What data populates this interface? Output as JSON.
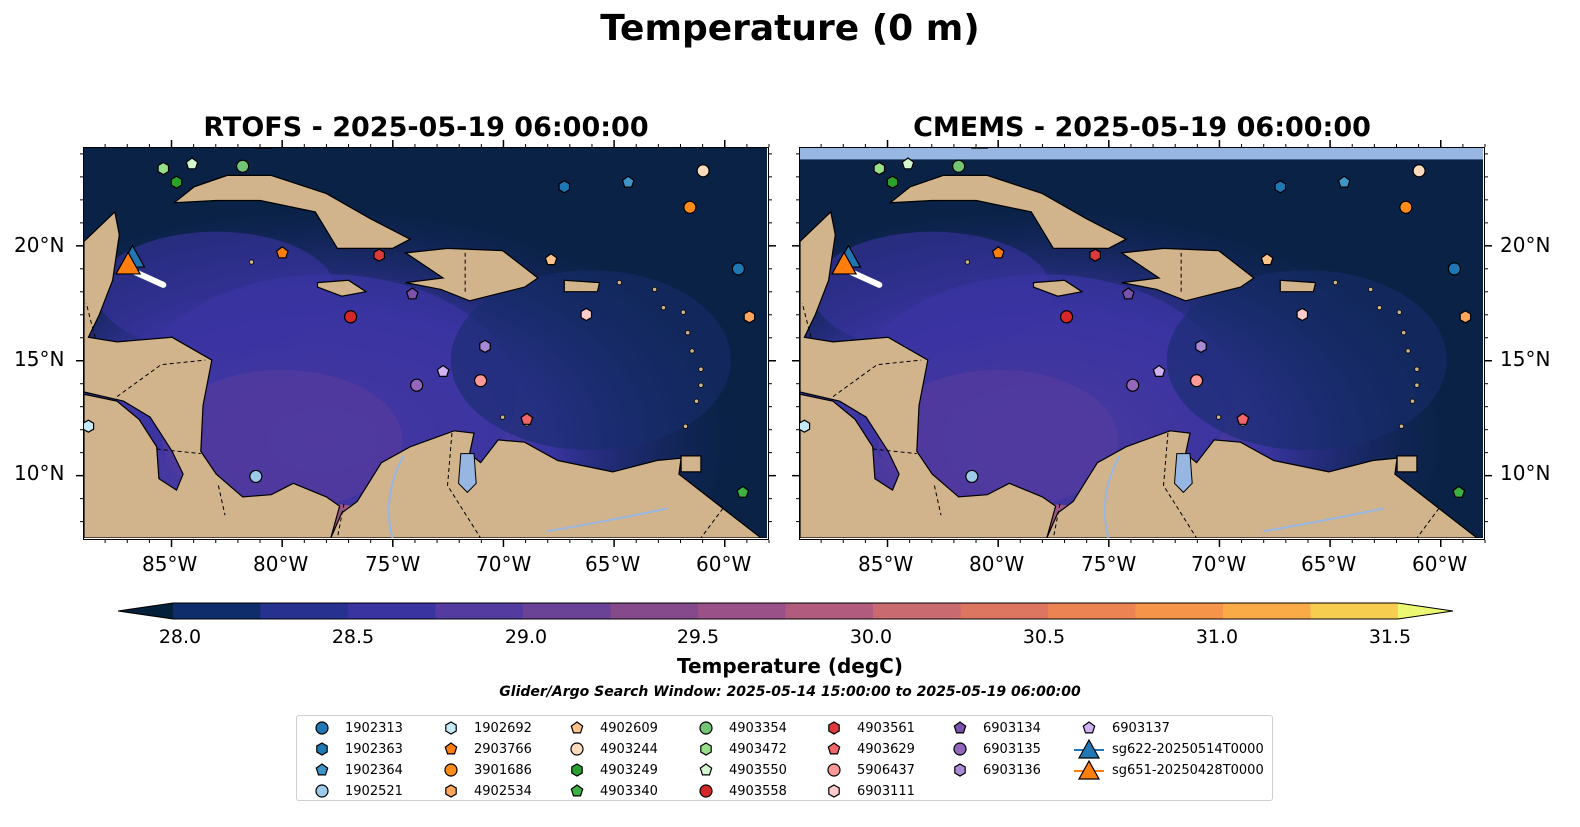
{
  "figure": {
    "title": "Temperature (0 m)",
    "panels": [
      {
        "model": "RTOFS",
        "title": "RTOFS - 2025-05-19 06:00:00"
      },
      {
        "model": "CMEMS",
        "title": "CMEMS - 2025-05-19 06:00:00"
      }
    ],
    "lon_ticks": [
      "85°W",
      "80°W",
      "75°W",
      "70°W",
      "65°W",
      "60°W"
    ],
    "lat_ticks": [
      "20°N",
      "15°N",
      "10°N"
    ],
    "extent": {
      "lon": [
        -89,
        -58
      ],
      "lat": [
        7.2,
        24.3
      ]
    },
    "colorbar": {
      "label": "Temperature (degC)",
      "ticks": [
        "28.0",
        "28.5",
        "29.0",
        "29.5",
        "30.0",
        "30.5",
        "31.0",
        "31.5"
      ],
      "range": [
        28.0,
        31.5
      ],
      "colors": [
        "#04213b",
        "#0f2d6b",
        "#263190",
        "#3a34a1",
        "#533b9f",
        "#6a4396",
        "#854a8c",
        "#9a5187",
        "#b15c7e",
        "#c86a70",
        "#dc7660",
        "#ec8353",
        "#f6944a",
        "#fbab45",
        "#f6cd4e",
        "#ecf872"
      ]
    },
    "search_window": "Glider/Argo Search Window: 2025-05-14 15:00:00 to 2025-05-19 06:00:00",
    "colors": {
      "land": "#d2b48c",
      "lake": "#97b6e1"
    },
    "legend": [
      {
        "label": "1902313",
        "marker": "circle",
        "color": "#1f77b4"
      },
      {
        "label": "1902363",
        "marker": "hexagon",
        "color": "#1f77b4"
      },
      {
        "label": "1902364",
        "marker": "pentagon",
        "color": "#3f94c8"
      },
      {
        "label": "1902521",
        "marker": "circle",
        "color": "#9ecae9"
      },
      {
        "label": "1902692",
        "marker": "hexagon",
        "color": "#c6e9fb"
      },
      {
        "label": "2903766",
        "marker": "pentagon",
        "color": "#ff7f0e"
      },
      {
        "label": "3901686",
        "marker": "circle",
        "color": "#ff8c1a"
      },
      {
        "label": "4902534",
        "marker": "hexagon",
        "color": "#ffa55c"
      },
      {
        "label": "4902609",
        "marker": "pentagon",
        "color": "#ffc38a"
      },
      {
        "label": "4903244",
        "marker": "circle",
        "color": "#ffdbbd"
      },
      {
        "label": "4903249",
        "marker": "hexagon",
        "color": "#2ca02c"
      },
      {
        "label": "4903340",
        "marker": "pentagon",
        "color": "#3cb043"
      },
      {
        "label": "4903354",
        "marker": "circle",
        "color": "#74c476"
      },
      {
        "label": "4903472",
        "marker": "hexagon",
        "color": "#98df8a"
      },
      {
        "label": "4903550",
        "marker": "pentagon",
        "color": "#d4f7d0"
      },
      {
        "label": "4903558",
        "marker": "circle",
        "color": "#d62728"
      },
      {
        "label": "4903561",
        "marker": "hexagon",
        "color": "#dd3b3b"
      },
      {
        "label": "4903629",
        "marker": "pentagon",
        "color": "#f0666b"
      },
      {
        "label": "5906437",
        "marker": "circle",
        "color": "#ff9896"
      },
      {
        "label": "6903111",
        "marker": "hexagon",
        "color": "#ffcccb"
      },
      {
        "label": "6903134",
        "marker": "pentagon",
        "color": "#7b52ab"
      },
      {
        "label": "6903135",
        "marker": "circle",
        "color": "#9467bd"
      },
      {
        "label": "6903136",
        "marker": "hexagon",
        "color": "#a98ad4"
      },
      {
        "label": "6903137",
        "marker": "pentagon",
        "color": "#d0b2f2"
      },
      {
        "label": "sg622-20250514T0000",
        "marker": "triangle",
        "color": "#1f77b4"
      },
      {
        "label": "sg651-20250428T0000",
        "marker": "triangle",
        "color": "#ff7f0e"
      }
    ],
    "floats": [
      {
        "id": "4903472",
        "lon": -85.4,
        "lat": 23.4
      },
      {
        "id": "4903550",
        "lon": -84.1,
        "lat": 23.6
      },
      {
        "id": "4903249",
        "lon": -84.8,
        "lat": 22.8
      },
      {
        "id": "4903354",
        "lon": -81.8,
        "lat": 23.5
      },
      {
        "id": "1902363",
        "lon": -67.2,
        "lat": 22.6
      },
      {
        "id": "1902364",
        "lon": -64.3,
        "lat": 22.8
      },
      {
        "id": "4903244",
        "lon": -60.9,
        "lat": 23.3
      },
      {
        "id": "3901686",
        "lon": -61.5,
        "lat": 21.7
      },
      {
        "id": "1902313",
        "lon": -59.3,
        "lat": 19.0
      },
      {
        "id": "2903766",
        "lon": -80.0,
        "lat": 19.7
      },
      {
        "id": "4903561",
        "lon": -75.6,
        "lat": 19.6
      },
      {
        "id": "4902609",
        "lon": -67.8,
        "lat": 19.4
      },
      {
        "id": "6903134",
        "lon": -74.1,
        "lat": 17.9
      },
      {
        "id": "4903558",
        "lon": -76.9,
        "lat": 16.9
      },
      {
        "id": "6903111",
        "lon": -66.2,
        "lat": 17.0
      },
      {
        "id": "4902534",
        "lon": -58.8,
        "lat": 16.9
      },
      {
        "id": "6903136",
        "lon": -70.8,
        "lat": 15.6
      },
      {
        "id": "6903137",
        "lon": -72.7,
        "lat": 14.5
      },
      {
        "id": "6903135",
        "lon": -73.9,
        "lat": 13.9
      },
      {
        "id": "5906437",
        "lon": -71.0,
        "lat": 14.1
      },
      {
        "id": "4903629",
        "lon": -68.9,
        "lat": 12.4
      },
      {
        "id": "1902692",
        "lon": -88.8,
        "lat": 12.1
      },
      {
        "id": "1902521",
        "lon": -81.2,
        "lat": 9.9
      },
      {
        "id": "4903340",
        "lon": -59.1,
        "lat": 9.2
      }
    ],
    "gliders": [
      {
        "id": "sg622-20250514T0000",
        "lon": -86.8,
        "lat": 19.5
      },
      {
        "id": "sg651-20250428T0000",
        "lon": -87.0,
        "lat": 19.2
      }
    ]
  }
}
